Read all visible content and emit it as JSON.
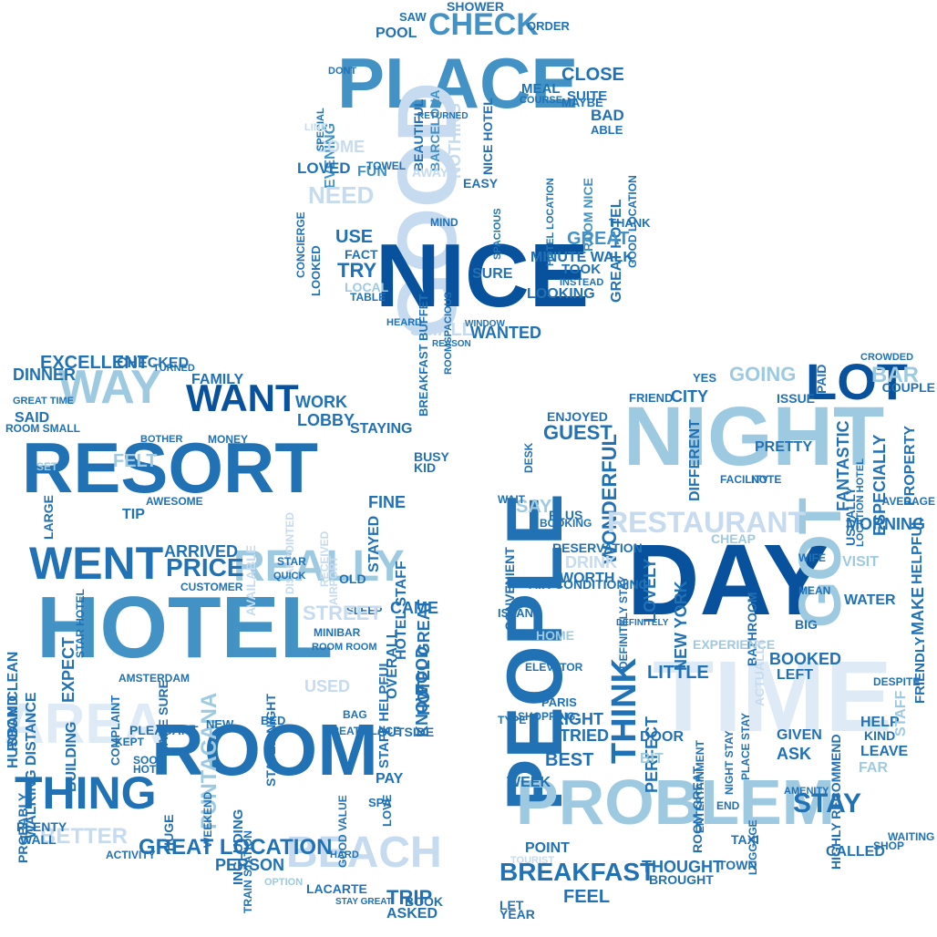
{
  "colors": {
    "background": "#ffffff",
    "navy": "#08519c",
    "blue": "#2171b5",
    "mid": "#4292c6",
    "light": "#9ecae1",
    "pale": "#c6dbef",
    "faint": "#deebf7"
  },
  "clouds": {
    "top": {
      "words": [
        "PLACE",
        "GOOD",
        "NICE",
        "CHECK",
        "POOL",
        "SHOWER",
        "SAW",
        "ORDER",
        "CLOSE",
        "SUITE",
        "BAD",
        "MEAL",
        "NICE HOTEL",
        "BEAUTIFUL",
        "BARCELONA",
        "NOTHING",
        "EVENING",
        "COME",
        "LOVED",
        "FUN",
        "NEED",
        "USE",
        "TRY",
        "FACT",
        "LOCAL",
        "TABLE",
        "LOOKED",
        "CONCIERGE",
        "SPECIAL",
        "DONT",
        "LINE",
        "TOWEL",
        "AWAY",
        "HOTEL LOCATION",
        "ROOM NICE",
        "GREAT HOTEL",
        "GOOD LOCATION",
        "THANK",
        "GREAT",
        "MINUTE WALK",
        "TOOK",
        "LOOKING",
        "SURE",
        "WANTED",
        "SMALL",
        "BREAKFAST BUFFET",
        "ROOMSPACIOUS",
        "SPACIOUS",
        "ABLE",
        "MAYBE",
        "COURSE",
        "RETURNED",
        "HEARD",
        "REASON",
        "EASY",
        "MIND",
        "INSTEAD",
        "WINDOW"
      ]
    },
    "left": {
      "words": [
        "RESORT",
        "HOTEL",
        "ROOM",
        "WAY",
        "WANT",
        "REALLY",
        "WENT",
        "EXCELLENT",
        "CHECKED",
        "DINNER",
        "FAMILY",
        "WORK",
        "LOBBY",
        "STAYING",
        "SAID",
        "GREAT TIME",
        "ROOM SMALL",
        "PRICE",
        "ARRIVED",
        "THING",
        "BETTER",
        "AREA",
        "BEACH",
        "GREAT LOCATION",
        "PERSON",
        "HUSBAND",
        "ROOM CLEAN",
        "WALKING DISTANCE",
        "EXPECT",
        "BUILDING",
        "STAR HOTEL",
        "FELT",
        "TIP",
        "HOTEL STAFF",
        "STAYED",
        "FINE",
        "HOTEL GREAT",
        "CAME",
        "KNOW",
        "FOOD",
        "STAFF HELPFUL",
        "OVERALL",
        "STAYED NIGHT",
        "PUNTACANA",
        "MAKE SURE",
        "COMPLAINT",
        "MINIBAR",
        "ROOM ROOM",
        "OUTSIDE",
        "INCLUDING",
        "HUGE",
        "WEEKEND",
        "TRAIN STATION",
        "GOOD VALUE",
        "PAY",
        "TRIP",
        "ASKED",
        "BOOK",
        "PROBABLY",
        "PLENTY",
        "WALL",
        "ACTIVITY",
        "KEPT",
        "PLEASANT",
        "AVAILABLE",
        "DISAPPOINTED",
        "RECEIVED",
        "AIRPORT",
        "STAR",
        "QUICK",
        "OLD",
        "SLEEP",
        "STREET",
        "USED",
        "GREAT PLACE",
        "SPA",
        "LOVE",
        "HARD",
        "OPTION",
        "LACARTE",
        "STAY GREAT",
        "BUSY",
        "KID",
        "TURNED",
        "MONEY",
        "BOTHER",
        "AWESOME",
        "LARGE",
        "SET",
        "AMSTERDAM",
        "NEW",
        "BAG",
        "BED",
        "SITE",
        "SOON",
        "HOT",
        "CUSTOMER"
      ]
    },
    "right": {
      "words": [
        "NIGHT",
        "DAY",
        "PEOPLE",
        "TIME",
        "PROBLEM",
        "GOT",
        "LOT",
        "GOING",
        "CITY",
        "FRIEND",
        "YES",
        "PAID",
        "BAR",
        "THINK",
        "GUEST",
        "ENJOYED",
        "WONDERFUL",
        "RESTAURANT",
        "SAY",
        "PLUS",
        "BOOKING",
        "CONVENIENT",
        "RESERVATION",
        "DRINK",
        "WORTH",
        "LOVELY",
        "NEW YORK",
        "LITTLE",
        "BOOKED",
        "LEFT",
        "BIG",
        "MORNING",
        "WATER",
        "VISIT",
        "PRETTY",
        "NOTE",
        "DIFFERENT",
        "FANTASTIC",
        "ESPECIALLY",
        "PROPERTY",
        "HELPFUL",
        "FRIENDLY",
        "MAKE",
        "STAY",
        "ASK",
        "GIVEN",
        "LEAVE",
        "FAR",
        "CALLED",
        "SHOP",
        "WAITING",
        "HIGHLY RECOMMEND",
        "NIGHT STAY",
        "PLACE STAY",
        "AIR CONDITIONING",
        "HOME",
        "ELEVATOR",
        "PARIS",
        "SHOPPING",
        "RIGHT",
        "TRIED",
        "PERFECT",
        "DOOR",
        "BIT",
        "BEST",
        "WEEK",
        "POINT",
        "BREAKFAST",
        "FEEL",
        "BROUGHT",
        "THOUGHT",
        "TOWN",
        "END",
        "TAXI",
        "LUGGAGE",
        "YEAR",
        "LET",
        "TYPE",
        "DESK",
        "ISLAND",
        "WAIT",
        "AVERAGE",
        "COUPLE",
        "USUALLY",
        "BATHROOM",
        "DEFINITELY STAY",
        "EXPERIENCE",
        "DEFINITELY",
        "ROOM GREAT",
        "ACTUALLY",
        "HELP",
        "KIND",
        "STAFF",
        "MEAN",
        "LOCATION HOTEL",
        "CROWDED",
        "ISSUE",
        "ENTERTAINMENT",
        "FACILITY",
        "CHEAP",
        "AMENITY",
        "DESPITE",
        "WIFE",
        "TOURIST"
      ]
    }
  }
}
